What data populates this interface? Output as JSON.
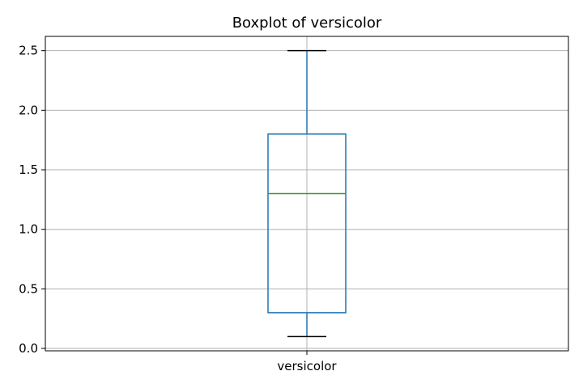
{
  "chart_data": {
    "type": "box",
    "title": "Boxplot of versicolor",
    "xlabel": "",
    "ylabel": "",
    "categories": [
      "versicolor"
    ],
    "boxes": [
      {
        "category": "versicolor",
        "whisker_low": 0.1,
        "q1": 0.3,
        "median": 1.3,
        "q3": 1.8,
        "whisker_high": 2.5
      }
    ],
    "ylim": [
      -0.02,
      2.62
    ],
    "y_ticks": [
      "0.0",
      "0.5",
      "1.0",
      "1.5",
      "2.0",
      "2.5"
    ],
    "y_tick_values": [
      0.0,
      0.5,
      1.0,
      1.5,
      2.0,
      2.5
    ],
    "grid": true,
    "legend": "none",
    "colors": {
      "box": "#1f77b4",
      "median": "#2ca02c",
      "caps": "#000000",
      "grid": "#b0b0b0",
      "axes": "#000000"
    }
  }
}
